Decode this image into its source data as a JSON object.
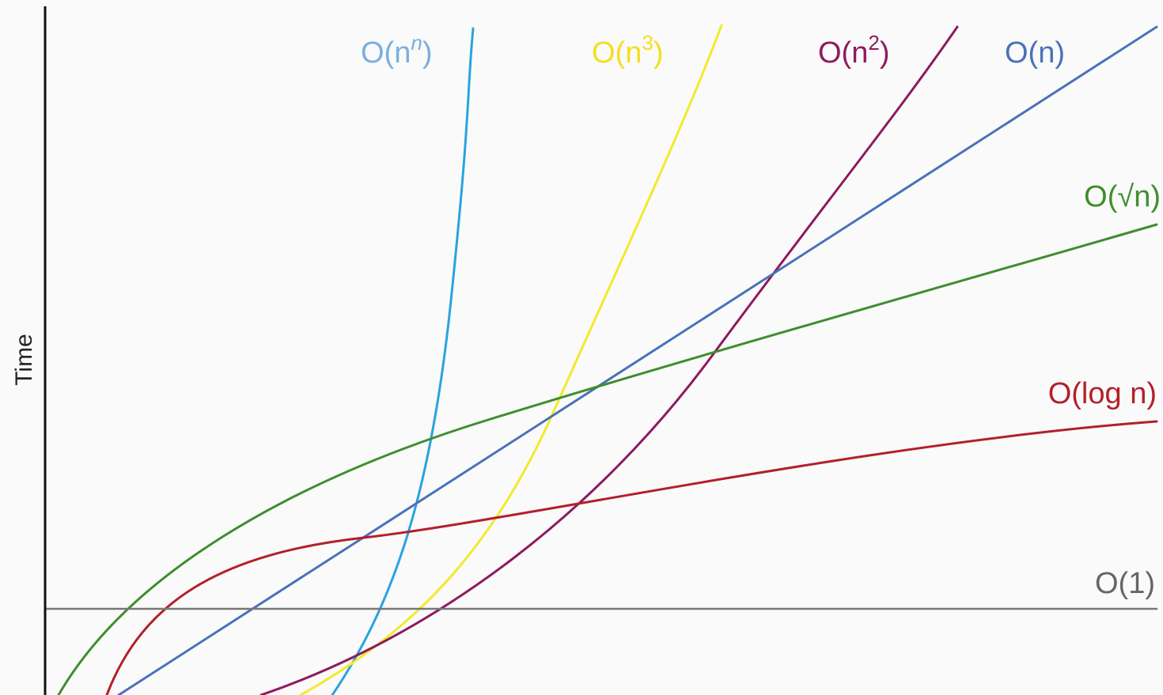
{
  "chart_data": {
    "type": "line",
    "title": "",
    "xlabel": "",
    "ylabel": "Time",
    "grid": false,
    "legend": "inline labels at curve ends",
    "series": [
      {
        "key": "nn",
        "name": "O(n^n)",
        "label_base": "O(n",
        "label_sup": "n",
        "label_sup_italic": true,
        "label_close": ")",
        "color": "#29a3df",
        "label_color": "#7aaee0"
      },
      {
        "key": "n3",
        "name": "O(n^3)",
        "label_base": "O(n",
        "label_sup": "3",
        "label_sup_italic": false,
        "label_close": ")",
        "color": "#f2ea2c",
        "label_color": "#f2e020"
      },
      {
        "key": "n2",
        "name": "O(n^2)",
        "label_base": "O(n",
        "label_sup": "2",
        "label_sup_italic": false,
        "label_close": ")",
        "color": "#8e1b5e",
        "label_color": "#8e1b5e"
      },
      {
        "key": "n",
        "name": "O(n)",
        "label_base": "O(n)",
        "color": "#4a72b8",
        "label_color": "#4a72b8"
      },
      {
        "key": "sqrt",
        "name": "O(√n)",
        "label_base": "O(√n)",
        "color": "#3e8e2e",
        "label_color": "#3e8e2e"
      },
      {
        "key": "log",
        "name": "O(log n)",
        "label_base": "O(log n)",
        "color": "#b3202a",
        "label_color": "#b3202a"
      },
      {
        "key": "const",
        "name": "O(1)",
        "label_base": "O(1)",
        "color": "#777777",
        "label_color": "#666666"
      }
    ]
  }
}
